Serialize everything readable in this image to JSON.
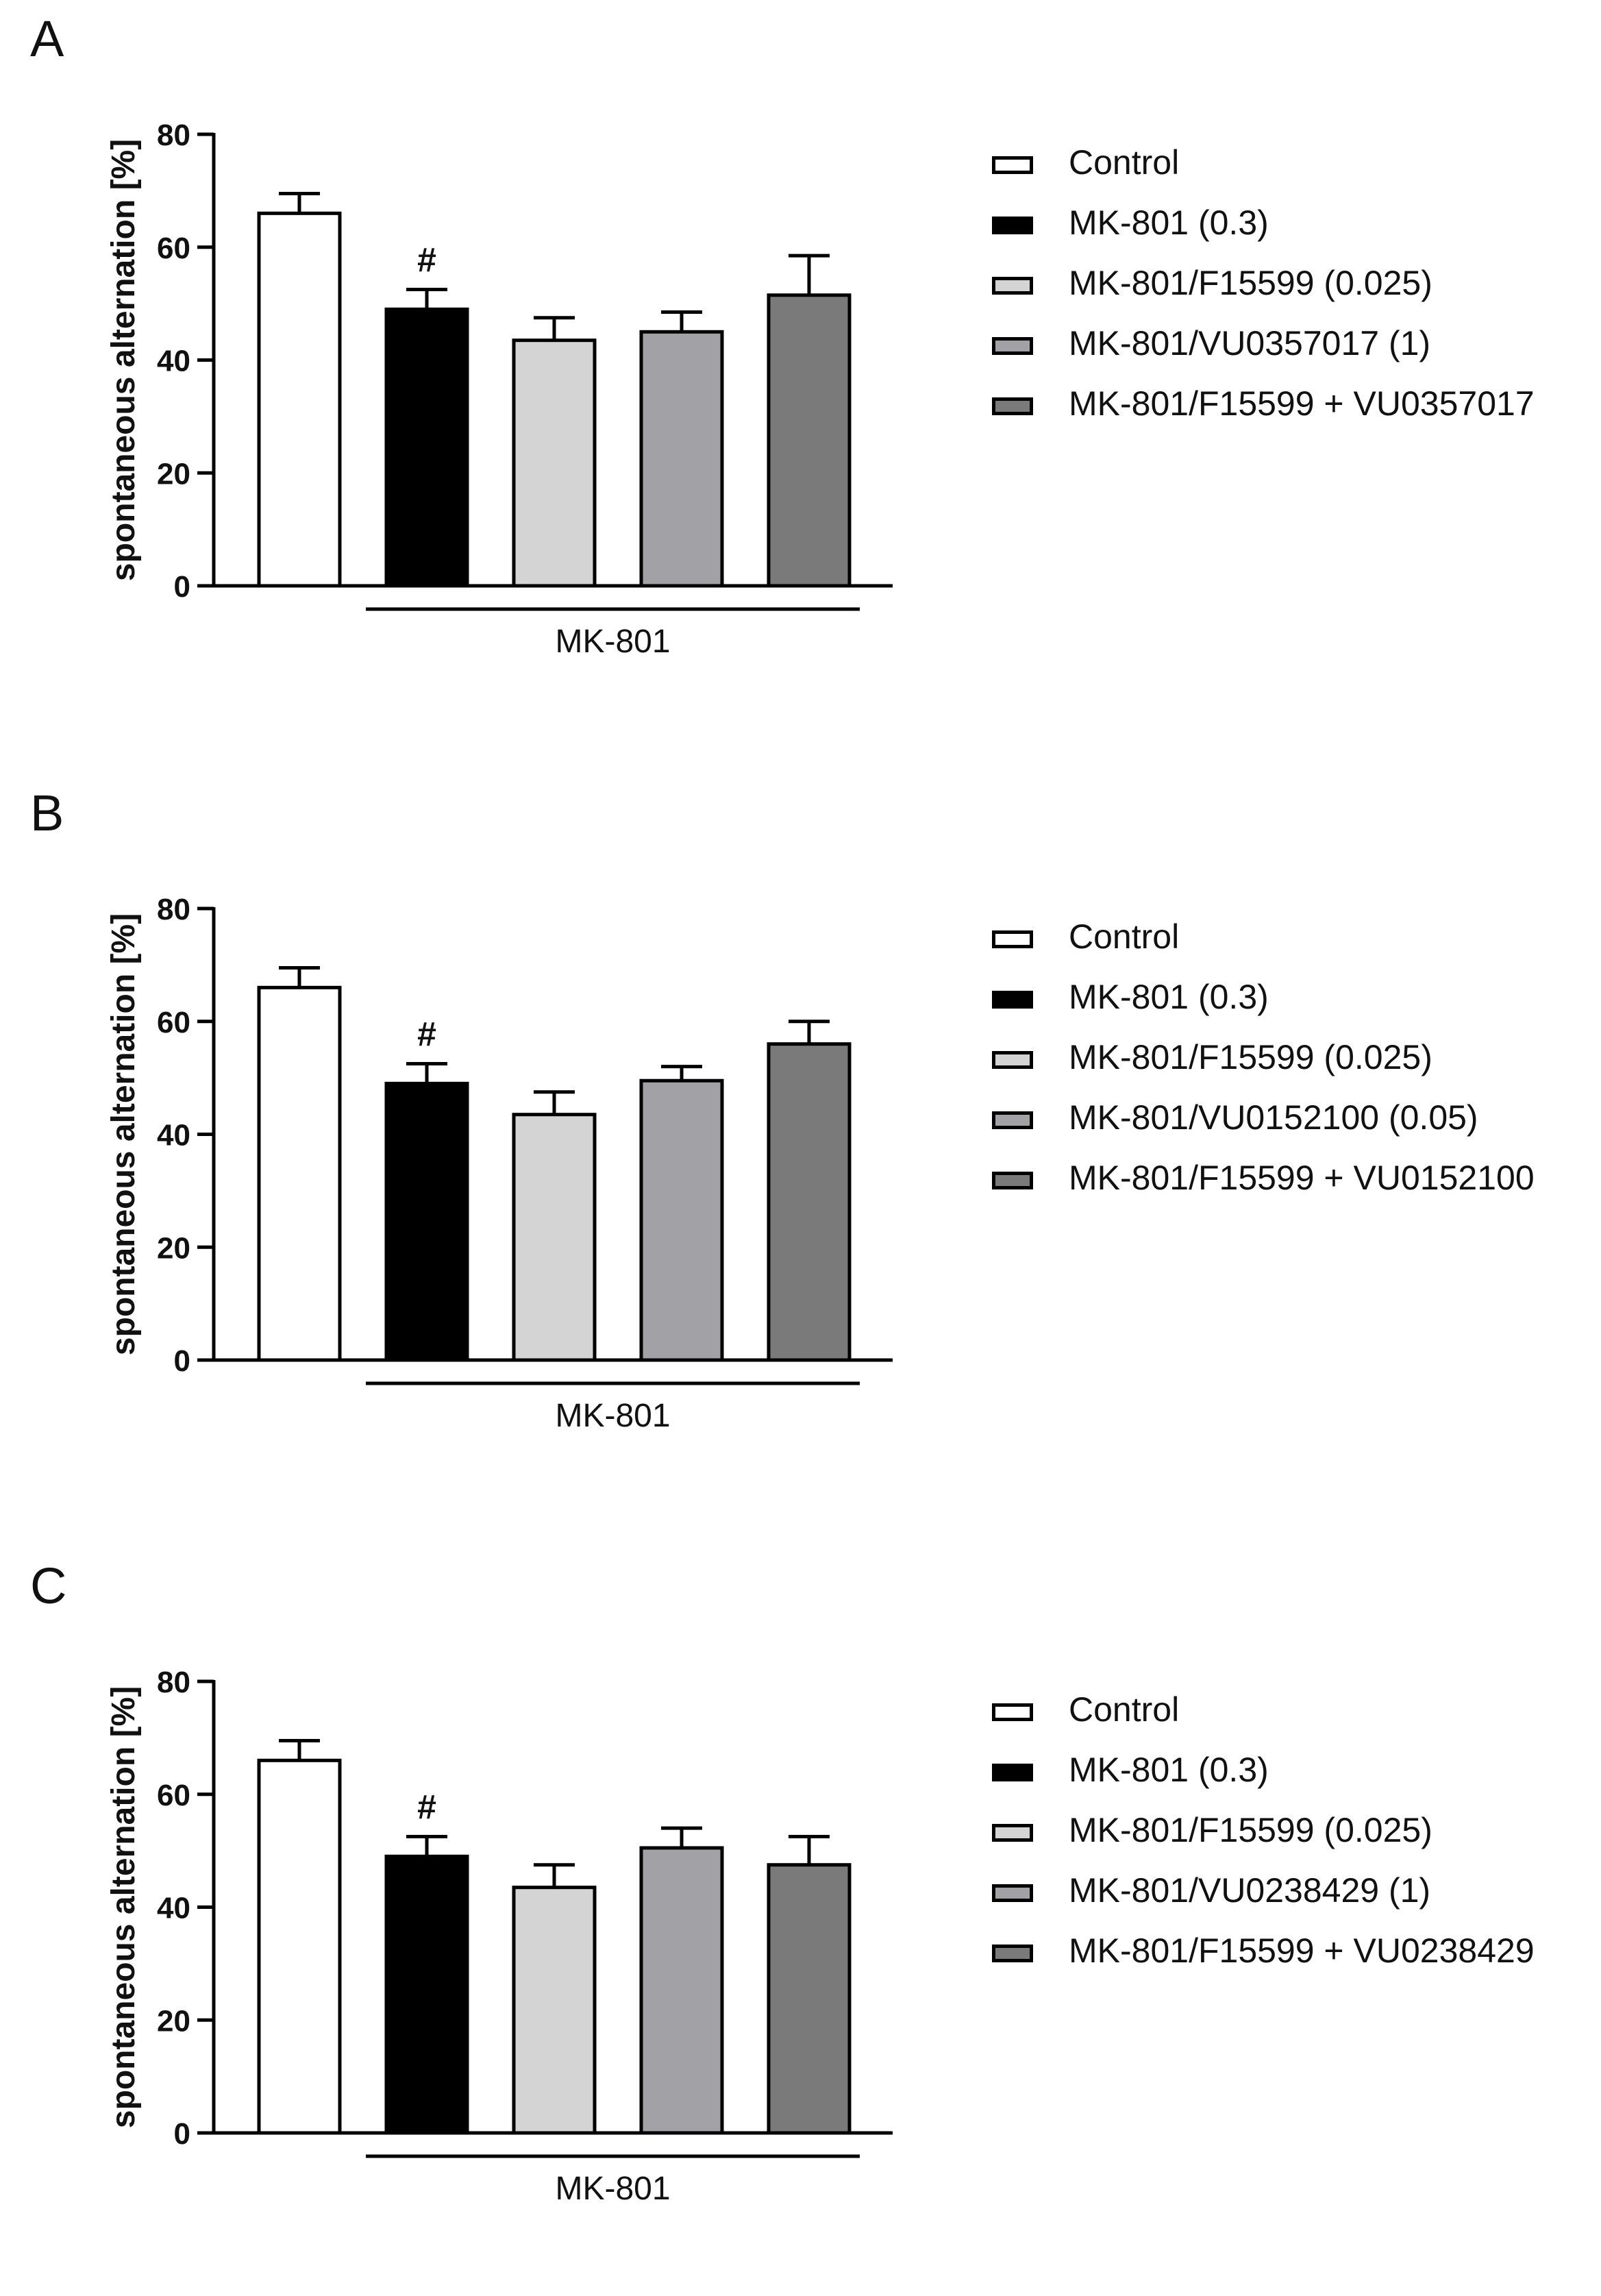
{
  "colors": {
    "control": "#ffffff",
    "mk801": "#000000",
    "f15599": "#d4d4d4",
    "antagonist": "#a2a2a6",
    "combo": "#7a7a7a",
    "axis": "#000000"
  },
  "chart_data": [
    {
      "panel": "A",
      "type": "bar",
      "ylabel": "spontaneous alternation [%]",
      "ylim": [
        0,
        80
      ],
      "yticks": [
        0,
        20,
        40,
        60,
        80
      ],
      "group_label": "MK-801",
      "categories": [
        "Control",
        "MK-801 (0.3)",
        "MK-801/F15599 (0.025)",
        "MK-801/VU0357017 (1)",
        "MK-801/F15599 + VU0357017"
      ],
      "values": [
        66,
        49,
        43.5,
        45,
        51.5
      ],
      "errors": [
        3.5,
        3.5,
        4,
        3.5,
        7
      ],
      "annotations": [
        "",
        "#",
        "",
        "",
        ""
      ]
    },
    {
      "panel": "B",
      "type": "bar",
      "ylabel": "spontaneous alternation [%]",
      "ylim": [
        0,
        80
      ],
      "yticks": [
        0,
        20,
        40,
        60,
        80
      ],
      "group_label": "MK-801",
      "categories": [
        "Control",
        "MK-801 (0.3)",
        "MK-801/F15599 (0.025)",
        "MK-801/VU0152100 (0.05)",
        "MK-801/F15599 + VU0152100"
      ],
      "values": [
        66,
        49,
        43.5,
        49.5,
        56
      ],
      "errors": [
        3.5,
        3.5,
        4,
        2.5,
        4
      ],
      "annotations": [
        "",
        "#",
        "",
        "",
        ""
      ]
    },
    {
      "panel": "C",
      "type": "bar",
      "ylabel": "spontaneous alternation [%]",
      "ylim": [
        0,
        80
      ],
      "yticks": [
        0,
        20,
        40,
        60,
        80
      ],
      "group_label": "MK-801",
      "categories": [
        "Control",
        "MK-801 (0.3)",
        "MK-801/F15599 (0.025)",
        "MK-801/VU0238429 (1)",
        "MK-801/F15599 + VU0238429"
      ],
      "values": [
        66,
        49,
        43.5,
        50.5,
        47.5
      ],
      "errors": [
        3.5,
        3.5,
        4,
        3.5,
        5
      ],
      "annotations": [
        "",
        "#",
        "",
        "",
        ""
      ]
    }
  ]
}
